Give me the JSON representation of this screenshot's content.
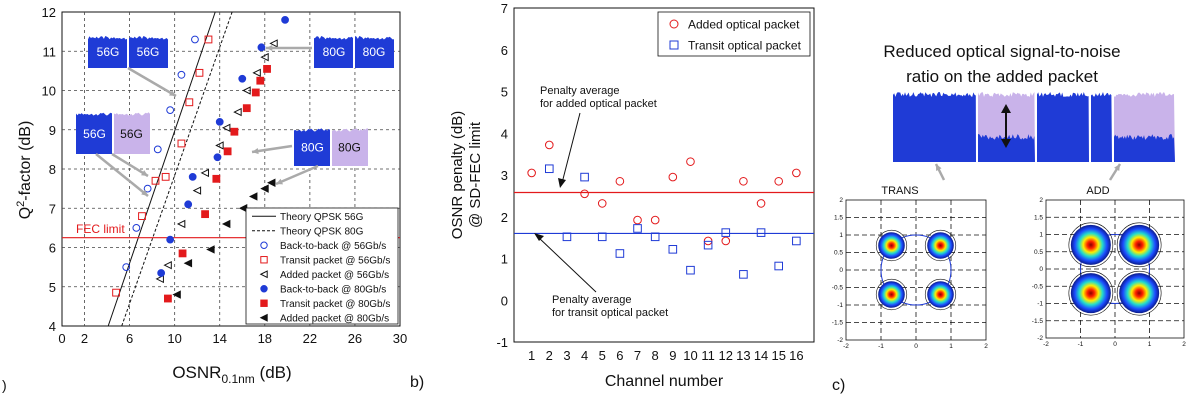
{
  "panel_labels": {
    "a": ")",
    "b": "b)",
    "c": "c)"
  },
  "colors": {
    "red": "#e31a1c",
    "blue": "#1f3bd6",
    "lilac": "#c9b3ea",
    "black": "#111111",
    "gray_arrow": "#aaaaaa"
  },
  "chart_data": [
    {
      "type": "scatter",
      "panel": "a",
      "xlabel": "OSNR",
      "xlabel_sub": "0.1nm",
      "xlabel_unit": " (dB)",
      "ylabel": "Q",
      "ylabel_sup": "2",
      "ylabel_rest": "-factor (dB)",
      "xlim": [
        0,
        30
      ],
      "ylim": [
        4,
        12
      ],
      "xticks": [
        0,
        2,
        6,
        10,
        14,
        18,
        22,
        26,
        30
      ],
      "yticks": [
        4,
        5,
        6,
        7,
        8,
        9,
        10,
        11,
        12
      ],
      "grid": "dashed",
      "fec_limit": {
        "label": "FEC limit",
        "y": 6.25
      },
      "lines": [
        {
          "name": "Theory QPSK 56G",
          "dash": "solid",
          "points": [
            [
              4.1,
              4
            ],
            [
              13.6,
              12
            ]
          ]
        },
        {
          "name": "Theory QPSK 80G",
          "dash": "dashed",
          "points": [
            [
              5.3,
              4
            ],
            [
              15.1,
              12
            ]
          ]
        }
      ],
      "series": [
        {
          "name": "Back-to-back @ 56Gb/s",
          "marker": "circle-open",
          "color": "blue",
          "points": [
            [
              5.7,
              5.5
            ],
            [
              6.6,
              6.5
            ],
            [
              7.6,
              7.5
            ],
            [
              8.5,
              8.5
            ],
            [
              9.6,
              9.5
            ],
            [
              10.6,
              10.4
            ],
            [
              11.8,
              11.3
            ]
          ]
        },
        {
          "name": "Transit packet @ 56Gb/s",
          "marker": "square-open",
          "color": "red",
          "points": [
            [
              4.8,
              4.85
            ],
            [
              7.1,
              6.8
            ],
            [
              8.3,
              7.7
            ],
            [
              9.2,
              7.8
            ],
            [
              10.6,
              8.65
            ],
            [
              11.3,
              9.7
            ],
            [
              12.2,
              10.45
            ],
            [
              13.0,
              11.3
            ]
          ]
        },
        {
          "name": "Added packet @ 56Gb/s",
          "marker": "triangle-left-open",
          "color": "black",
          "points": [
            [
              8.7,
              5.2
            ],
            [
              9.4,
              5.55
            ],
            [
              10.6,
              6.6
            ],
            [
              12.0,
              7.45
            ],
            [
              12.7,
              7.9
            ],
            [
              14.0,
              8.6
            ],
            [
              14.6,
              9.05
            ],
            [
              15.6,
              9.45
            ],
            [
              16.4,
              10.0
            ],
            [
              17.3,
              10.45
            ],
            [
              18.0,
              10.85
            ],
            [
              18.8,
              11.2
            ]
          ]
        },
        {
          "name": "Back-to-back @ 80Gb/s",
          "marker": "circle-filled",
          "color": "blue",
          "points": [
            [
              8.8,
              5.35
            ],
            [
              9.6,
              6.2
            ],
            [
              11.2,
              7.1
            ],
            [
              11.6,
              7.8
            ],
            [
              13.8,
              8.3
            ],
            [
              14.0,
              9.2
            ],
            [
              16.0,
              10.3
            ],
            [
              17.7,
              11.1
            ],
            [
              19.8,
              11.8
            ]
          ]
        },
        {
          "name": "Transit packet @ 80Gb/s",
          "marker": "square-filled",
          "color": "red",
          "points": [
            [
              9.4,
              4.7
            ],
            [
              10.7,
              5.85
            ],
            [
              12.7,
              6.85
            ],
            [
              13.7,
              7.75
            ],
            [
              14.7,
              8.45
            ],
            [
              15.3,
              8.95
            ],
            [
              16.4,
              9.55
            ],
            [
              17.2,
              9.95
            ],
            [
              17.6,
              10.25
            ],
            [
              18.2,
              10.55
            ]
          ]
        },
        {
          "name": "Added packet @ 80Gb/s",
          "marker": "triangle-left-filled",
          "color": "black",
          "points": [
            [
              10.2,
              4.8
            ],
            [
              11.2,
              5.6
            ],
            [
              13.2,
              5.95
            ],
            [
              14.6,
              6.6
            ],
            [
              16.1,
              7.0
            ],
            [
              17.0,
              7.3
            ],
            [
              18.0,
              7.5
            ],
            [
              18.6,
              7.65
            ]
          ]
        }
      ],
      "insets": [
        {
          "left": "56G",
          "right": "56G",
          "right_style": "blue"
        },
        {
          "left": "80G",
          "right": "80G",
          "right_style": "blue"
        },
        {
          "left": "56G",
          "right": "56G",
          "right_style": "lilac"
        },
        {
          "left": "80G",
          "right": "80G",
          "right_style": "lilac"
        }
      ]
    },
    {
      "type": "scatter",
      "panel": "b",
      "xlabel": "Channel number",
      "ylabel_line1": "OSNR penalty (dB)",
      "ylabel_line2": "@ SD-FEC limit",
      "xlim": [
        0,
        17
      ],
      "ylim": [
        -1,
        7
      ],
      "categories": [
        "1",
        "2",
        "3",
        "4",
        "5",
        "6",
        "7",
        "8",
        "9",
        "10",
        "11",
        "12",
        "13",
        "14",
        "15",
        "16"
      ],
      "yticks": [
        -1,
        0,
        1,
        2,
        3,
        4,
        5,
        6,
        7
      ],
      "legend_position": "top-right",
      "series": [
        {
          "name": "Added optical packet",
          "marker": "circle-open",
          "color": "red",
          "values": [
            3.05,
            3.72,
            null,
            2.55,
            2.32,
            2.85,
            1.92,
            1.92,
            2.95,
            3.32,
            1.42,
            1.42,
            2.85,
            2.32,
            2.85,
            3.05
          ]
        },
        {
          "name": "Transit optical packet",
          "marker": "square-open",
          "color": "blue",
          "values": [
            null,
            3.15,
            1.52,
            2.95,
            1.52,
            1.12,
            1.72,
            1.52,
            1.22,
            0.72,
            1.32,
            1.62,
            0.62,
            1.62,
            0.82,
            1.42
          ]
        }
      ],
      "average_added": 2.58,
      "average_transit": 1.6,
      "annotation_added_line1": "Penalty average",
      "annotation_added_line2": "for added optical packet",
      "annotation_transit_line1": "Penalty average",
      "annotation_transit_line2": "for transit optical packet"
    }
  ],
  "panel_c": {
    "title_line1": "Reduced optical signal-to-noise",
    "title_line2": "ratio on the added packet",
    "trans_label": "TRANS",
    "add_label": "ADD",
    "const_ticks": [
      "-2",
      "-1.5",
      "-1",
      "-0.5",
      "0",
      "0.5",
      "1",
      "1.5",
      "2"
    ],
    "const_xticks": [
      "-2",
      "-1",
      "0",
      "1",
      "2"
    ]
  }
}
